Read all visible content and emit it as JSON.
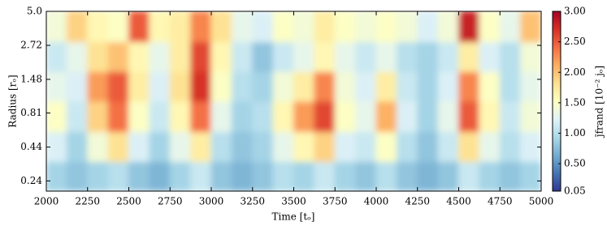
{
  "chart_data": {
    "type": "heatmap",
    "xlabel": "Time [tₒ]",
    "ylabel": "Radius [rₒ]",
    "colorbar_label": "j̄frand [10⁻² jₒ]",
    "x_edges": [
      2000,
      2125,
      2250,
      2375,
      2500,
      2625,
      2750,
      2875,
      3000,
      3125,
      3250,
      3375,
      3500,
      3625,
      3750,
      3875,
      4000,
      4125,
      4250,
      4375,
      4500,
      4625,
      4750,
      4875,
      5000
    ],
    "y_edges": [
      0.2,
      0.34,
      0.58,
      1.0,
      1.7,
      2.9,
      5
    ],
    "z": [
      [
        0.9,
        0.8,
        0.9,
        1.0,
        0.8,
        0.7,
        0.9,
        1.1,
        0.8,
        0.7,
        0.8,
        1.0,
        0.9,
        1.1,
        0.9,
        0.8,
        1.0,
        0.8,
        0.7,
        0.8,
        1.1,
        0.9,
        0.8,
        0.9
      ],
      [
        1.2,
        0.9,
        1.4,
        1.8,
        1.2,
        0.9,
        1.3,
        1.7,
        1.0,
        0.8,
        0.9,
        1.3,
        1.6,
        1.9,
        1.2,
        1.1,
        1.5,
        1.0,
        0.8,
        1.1,
        1.8,
        1.3,
        1.0,
        1.2
      ],
      [
        1.5,
        1.1,
        1.9,
        2.4,
        1.5,
        1.1,
        1.6,
        2.4,
        1.3,
        0.9,
        1.0,
        1.6,
        2.2,
        2.6,
        1.5,
        1.3,
        2.1,
        1.2,
        0.9,
        1.3,
        2.5,
        1.6,
        1.1,
        1.4
      ],
      [
        1.3,
        1.2,
        2.2,
        2.5,
        1.7,
        1.2,
        1.8,
        2.7,
        1.5,
        1.0,
        0.9,
        1.4,
        1.7,
        2.3,
        1.4,
        1.2,
        1.7,
        1.1,
        0.9,
        1.2,
        2.3,
        1.5,
        1.0,
        1.3
      ],
      [
        1.1,
        1.3,
        1.8,
        2.0,
        1.6,
        1.3,
        1.7,
        2.6,
        1.6,
        1.1,
        0.8,
        1.1,
        1.3,
        1.6,
        1.3,
        1.1,
        1.3,
        1.0,
        0.9,
        1.1,
        1.7,
        1.2,
        1.0,
        1.4
      ],
      [
        1.4,
        1.9,
        1.6,
        1.5,
        2.5,
        1.6,
        1.7,
        2.3,
        1.8,
        1.3,
        1.2,
        1.5,
        1.4,
        1.7,
        1.5,
        1.4,
        1.5,
        1.4,
        1.2,
        1.4,
        2.8,
        1.5,
        1.3,
        2.0
      ]
    ],
    "xlim": [
      2000,
      5000
    ],
    "xticks": [
      2000,
      2250,
      2500,
      2750,
      3000,
      3250,
      3500,
      3750,
      4000,
      4250,
      4500,
      4750,
      5000
    ],
    "ylim": [
      0.2,
      5
    ],
    "yscale": "log",
    "yticks": [
      0.24,
      0.44,
      0.81,
      1.48,
      2.72,
      {
        "value": 5,
        "label": "5.0"
      }
    ],
    "clim": [
      0.05,
      3
    ],
    "cticks": [
      0.05,
      {
        "value": 0.5,
        "label": "0.50"
      },
      {
        "value": 1,
        "label": "1.00"
      },
      {
        "value": 1.5,
        "label": "1.50"
      },
      {
        "value": 2,
        "label": "2.00"
      },
      {
        "value": 2.5,
        "label": "2.50"
      },
      {
        "value": 3,
        "label": "3.00"
      }
    ],
    "colormap": [
      "#313695",
      "#4575b4",
      "#74add1",
      "#abd9e9",
      "#e0f3f8",
      "#ffffbf",
      "#fee090",
      "#fdae61",
      "#f46d43",
      "#d73027",
      "#a50026"
    ]
  }
}
